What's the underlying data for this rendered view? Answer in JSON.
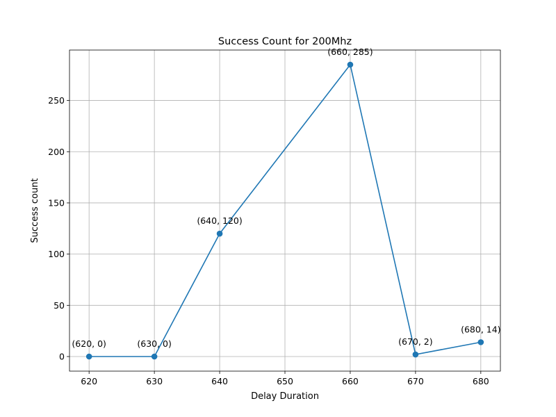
{
  "chart_data": {
    "type": "line",
    "title": "Success Count for 200Mhz",
    "xlabel": "Delay Duration",
    "ylabel": "Success count",
    "x": [
      620,
      630,
      640,
      660,
      670,
      680
    ],
    "series": [
      {
        "values": [
          0,
          0,
          120,
          285,
          2,
          14
        ],
        "color": "#1f77b4",
        "marker": "circle"
      }
    ],
    "point_labels": [
      "(620, 0)",
      "(630, 0)",
      "(640, 120)",
      "(660, 285)",
      "(670, 2)",
      "(680, 14)"
    ],
    "xticks": [
      620,
      630,
      640,
      650,
      660,
      670,
      680
    ],
    "yticks": [
      0,
      50,
      100,
      150,
      200,
      250
    ],
    "xlim": [
      617,
      683
    ],
    "ylim": [
      -14.25,
      299.25
    ],
    "grid": true
  }
}
